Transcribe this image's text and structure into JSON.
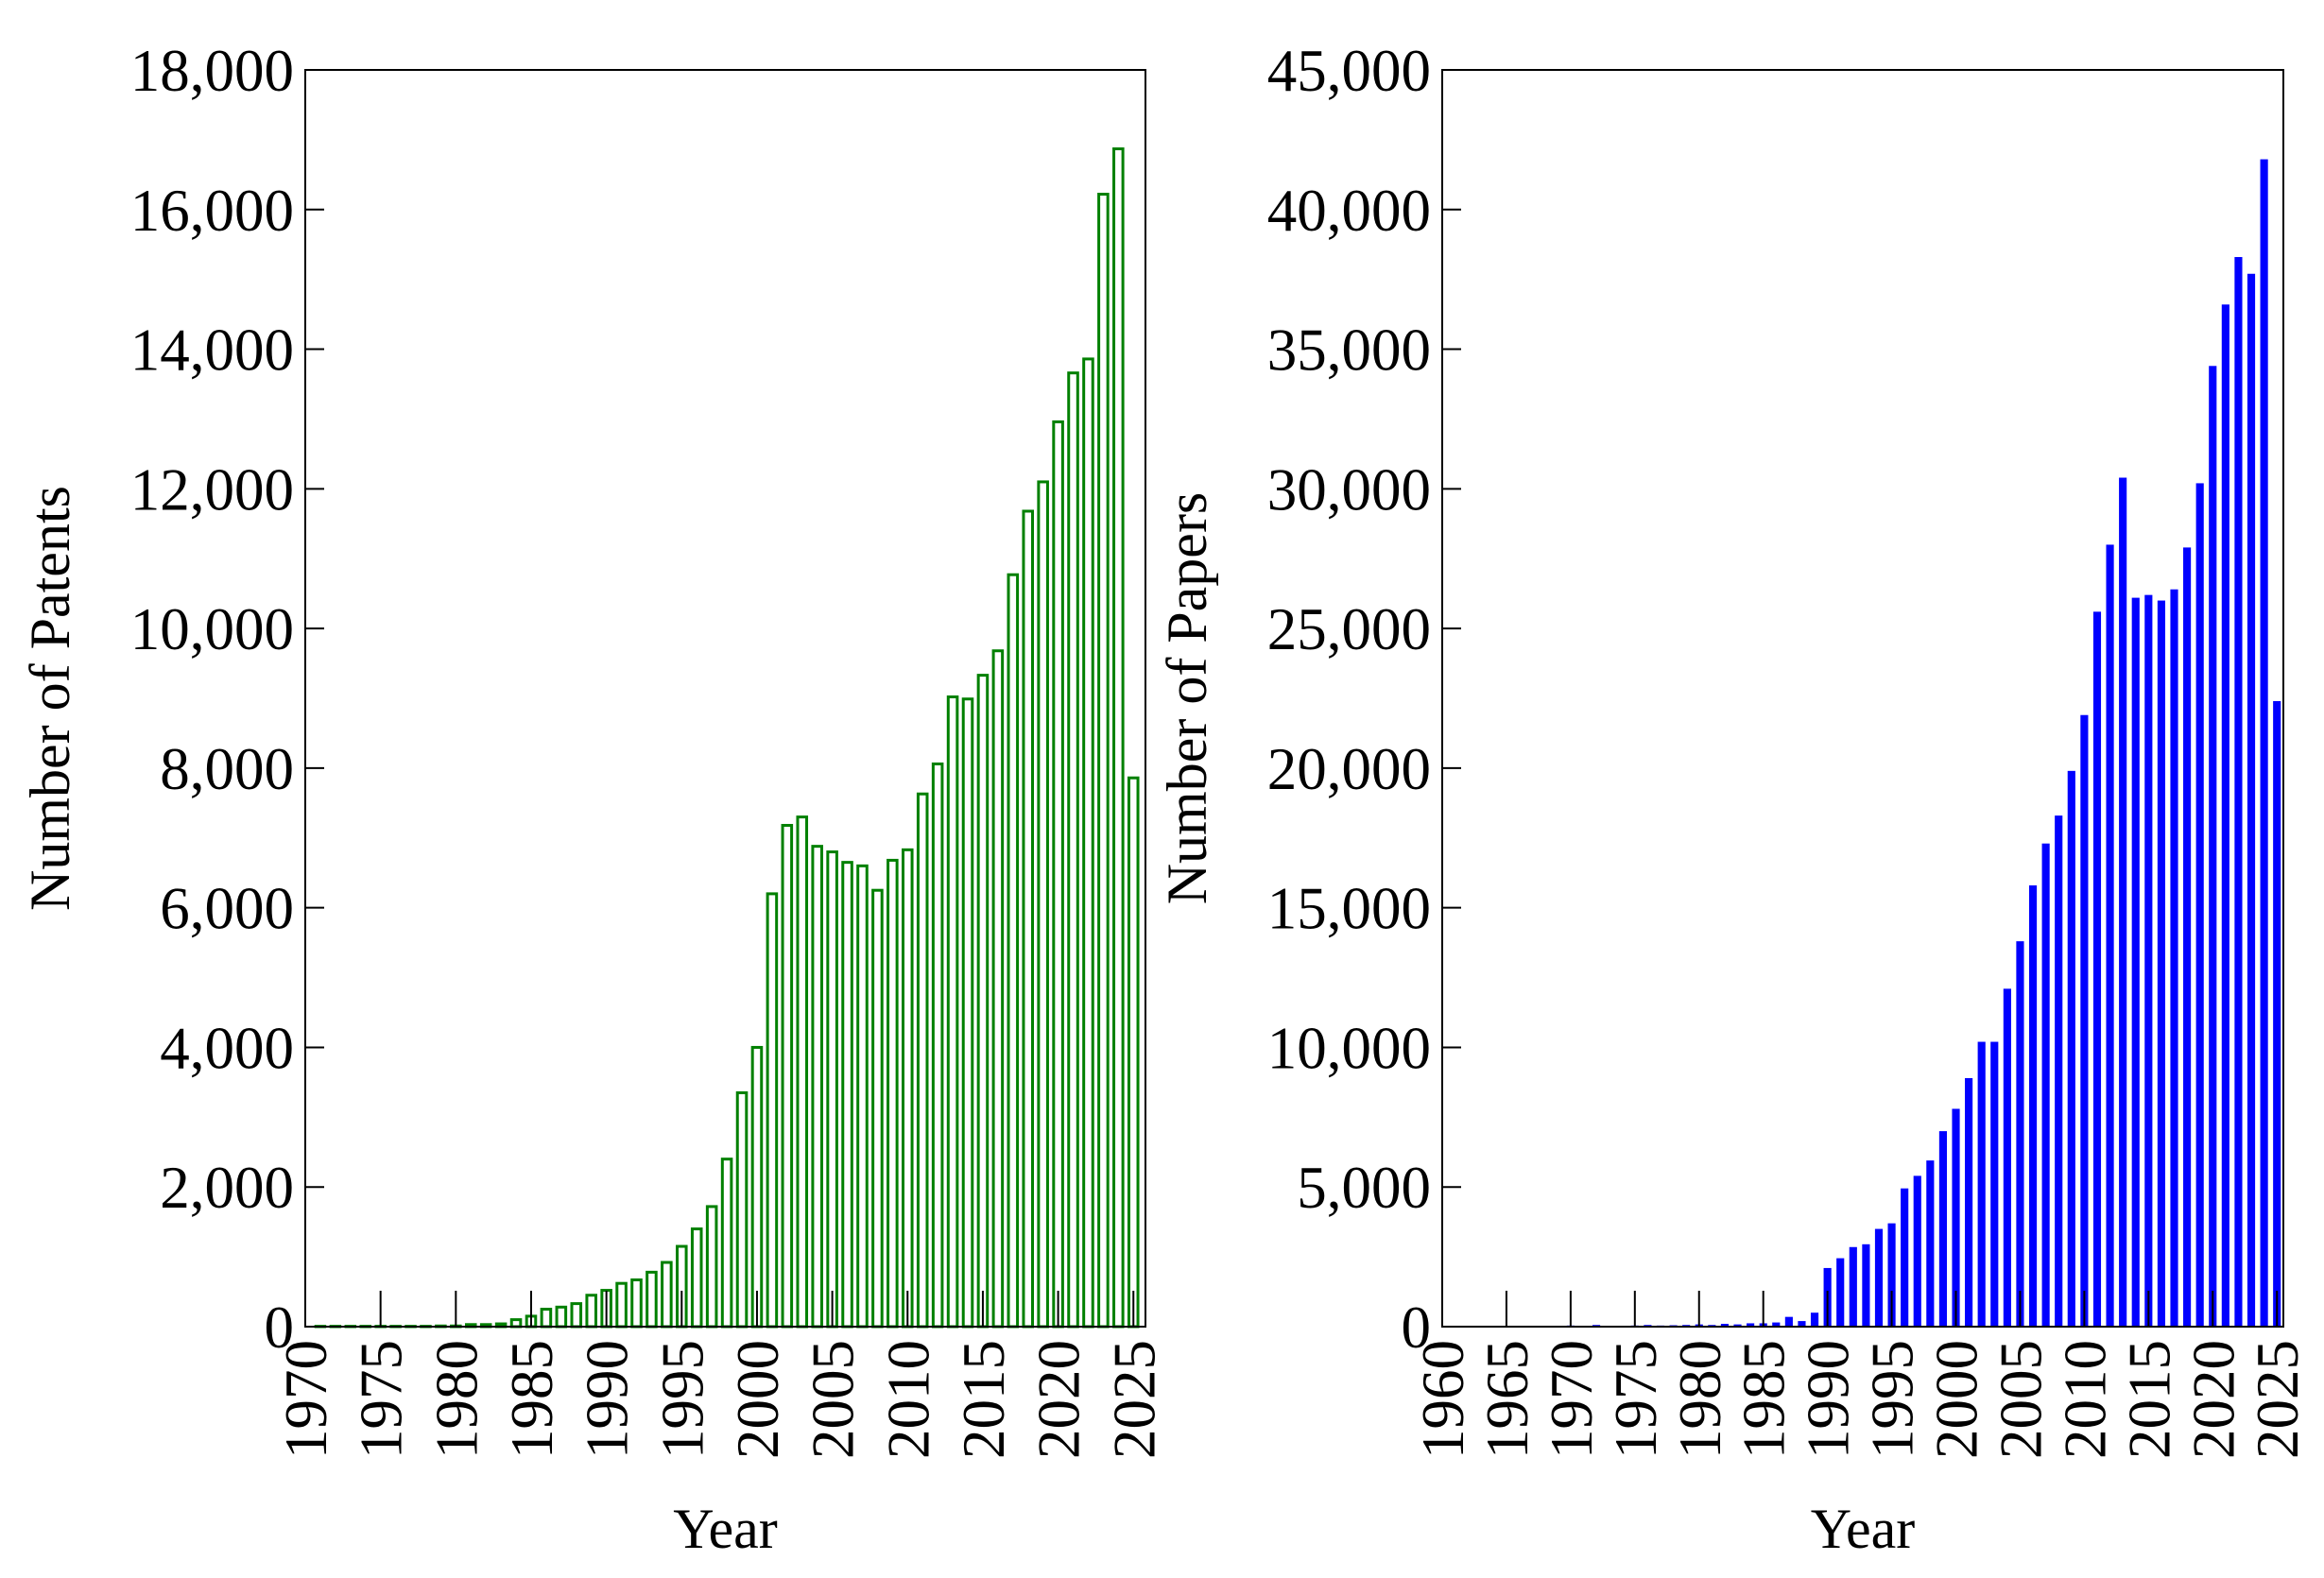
{
  "chart_data": [
    {
      "type": "bar",
      "hollow": true,
      "color": "#008000",
      "xlabel": "Year",
      "ylabel": "Number of Patents",
      "x": [
        1971,
        1972,
        1973,
        1974,
        1975,
        1976,
        1977,
        1978,
        1979,
        1980,
        1981,
        1982,
        1983,
        1984,
        1985,
        1986,
        1987,
        1988,
        1989,
        1990,
        1991,
        1992,
        1993,
        1994,
        1995,
        1996,
        1997,
        1998,
        1999,
        2000,
        2001,
        2002,
        2003,
        2004,
        2005,
        2006,
        2007,
        2008,
        2009,
        2010,
        2011,
        2012,
        2013,
        2014,
        2015,
        2016,
        2017,
        2018,
        2019,
        2020,
        2021,
        2022,
        2023,
        2024,
        2025
      ],
      "values": [
        5,
        5,
        5,
        5,
        5,
        5,
        5,
        5,
        10,
        10,
        30,
        30,
        40,
        100,
        150,
        250,
        280,
        330,
        450,
        520,
        620,
        670,
        780,
        920,
        1150,
        1400,
        1720,
        2400,
        3350,
        4000,
        6200,
        7180,
        7300,
        6880,
        6800,
        6650,
        6600,
        6250,
        6680,
        6830,
        7630,
        8060,
        9020,
        8990,
        9330,
        9680,
        10770,
        11680,
        12100,
        12960,
        13660,
        13860,
        16220,
        16870,
        7860
      ],
      "xlim": [
        1970,
        2025.8
      ],
      "xticks": [
        1970,
        1975,
        1980,
        1985,
        1990,
        1995,
        2000,
        2005,
        2010,
        2015,
        2020,
        2025
      ],
      "ylim": [
        0,
        18000
      ],
      "yticks": [
        0,
        {
          "value": 2000,
          "label": "2,000"
        },
        {
          "value": 4000,
          "label": "4,000"
        },
        {
          "value": 6000,
          "label": "6,000"
        },
        {
          "value": 8000,
          "label": "8,000"
        },
        {
          "value": 10000,
          "label": "10,000"
        },
        {
          "value": 12000,
          "label": "12,000"
        },
        {
          "value": 14000,
          "label": "14,000"
        },
        {
          "value": 16000,
          "label": "16,000"
        },
        {
          "value": 18000,
          "label": "18,000"
        }
      ]
    },
    {
      "type": "bar",
      "hollow": false,
      "color": "#0000ff",
      "xlabel": "Year",
      "ylabel": "Number of Papers",
      "x": [
        1961,
        1962,
        1963,
        1964,
        1965,
        1966,
        1967,
        1968,
        1969,
        1970,
        1971,
        1972,
        1973,
        1974,
        1975,
        1976,
        1977,
        1978,
        1979,
        1980,
        1981,
        1982,
        1983,
        1984,
        1985,
        1986,
        1987,
        1988,
        1989,
        1990,
        1991,
        1992,
        1993,
        1994,
        1995,
        1996,
        1997,
        1998,
        1999,
        2000,
        2001,
        2002,
        2003,
        2004,
        2005,
        2006,
        2007,
        2008,
        2009,
        2010,
        2011,
        2012,
        2013,
        2014,
        2015,
        2016,
        2017,
        2018,
        2019,
        2020,
        2021,
        2022,
        2023,
        2024,
        2025
      ],
      "values": [
        5,
        5,
        5,
        5,
        10,
        30,
        10,
        10,
        20,
        40,
        30,
        60,
        30,
        30,
        40,
        60,
        40,
        50,
        60,
        80,
        60,
        100,
        80,
        120,
        120,
        150,
        350,
        200,
        500,
        2100,
        2450,
        2850,
        2950,
        3500,
        3700,
        4950,
        5400,
        5950,
        7000,
        7800,
        8900,
        10200,
        10200,
        12100,
        13800,
        15800,
        17300,
        18300,
        19900,
        21900,
        25600,
        28000,
        30400,
        26100,
        26200,
        26000,
        26400,
        27900,
        30200,
        34400,
        36600,
        38300,
        37700,
        41800,
        22400
      ],
      "xlim": [
        1960,
        2025.5
      ],
      "xticks": [
        1960,
        1965,
        1970,
        1975,
        1980,
        1985,
        1990,
        1995,
        2000,
        2005,
        2010,
        2015,
        2020,
        2025
      ],
      "ylim": [
        0,
        45000
      ],
      "yticks": [
        0,
        {
          "value": 5000,
          "label": "5,000"
        },
        {
          "value": 10000,
          "label": "10,000"
        },
        {
          "value": 15000,
          "label": "15,000"
        },
        {
          "value": 20000,
          "label": "20,000"
        },
        {
          "value": 25000,
          "label": "25,000"
        },
        {
          "value": 30000,
          "label": "30,000"
        },
        {
          "value": 35000,
          "label": "35,000"
        },
        {
          "value": 40000,
          "label": "40,000"
        },
        {
          "value": 45000,
          "label": "45,000"
        }
      ]
    }
  ]
}
